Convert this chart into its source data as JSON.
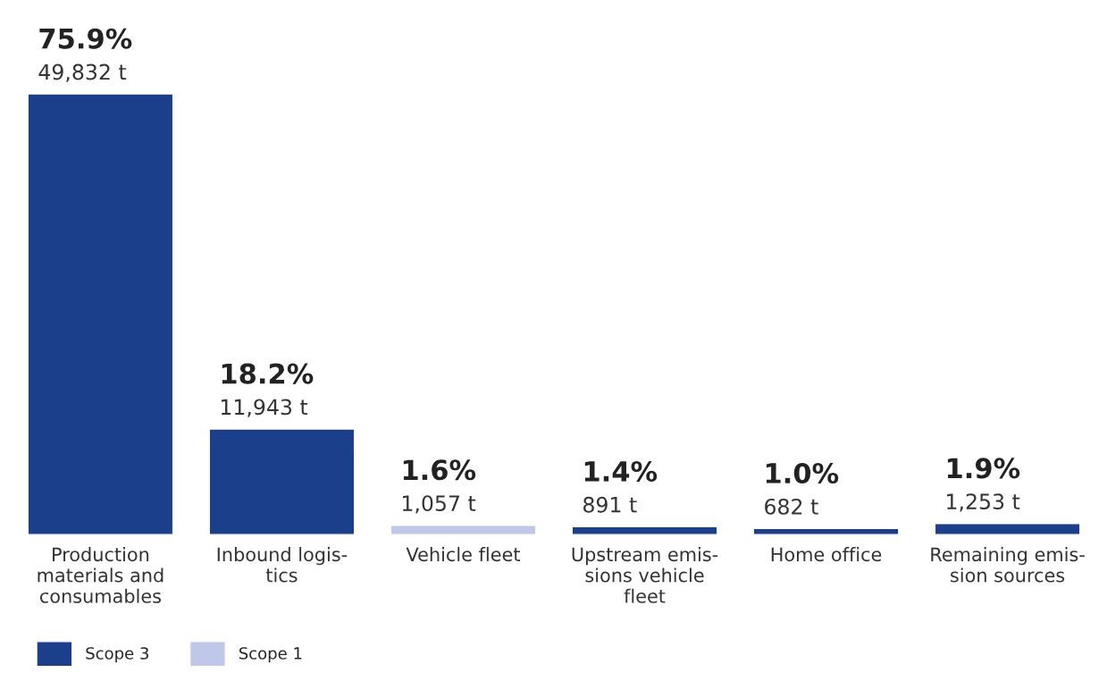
{
  "chart_data": {
    "type": "bar",
    "categories": [
      "Production\nmaterials and\nconsumables",
      "Inbound logis-\ntics",
      "Vehicle fleet",
      "Upstream emis-\nsions vehicle\nfleet",
      "Home office",
      "Remaining emis-\nsion sources"
    ],
    "series": [
      {
        "name": "Scope 3",
        "color": "#1b3f8b",
        "values": [
          49832,
          11943,
          null,
          891,
          682,
          1253
        ],
        "value_labels": [
          "49,832 t",
          "11,943 t",
          null,
          "891 t",
          "682 t",
          "1,253 t"
        ]
      },
      {
        "name": "Scope 1",
        "color": "#bfc8e8",
        "values": [
          null,
          null,
          1057,
          null,
          null,
          null
        ],
        "value_labels": [
          null,
          null,
          "1,057 t",
          null,
          null,
          null
        ]
      }
    ],
    "annotations": [
      {
        "text": "75.9%",
        "x": "Production\nmaterials and\nconsumables",
        "y": 49832
      },
      {
        "text": "18.2%",
        "x": "Inbound logis-\ntics",
        "y": 11943
      },
      {
        "text": "1.6%",
        "x": "Vehicle fleet",
        "y": 1057
      },
      {
        "text": "1.4%",
        "x": "Upstream emis-\nsions vehicle\nfleet",
        "y": 891
      },
      {
        "text": "1.0%",
        "x": "Home office",
        "y": 682
      },
      {
        "text": "1.9%",
        "x": "Remaining emis-\nsion sources",
        "y": 1253
      }
    ],
    "legend": "bottom left",
    "grid": false
  }
}
